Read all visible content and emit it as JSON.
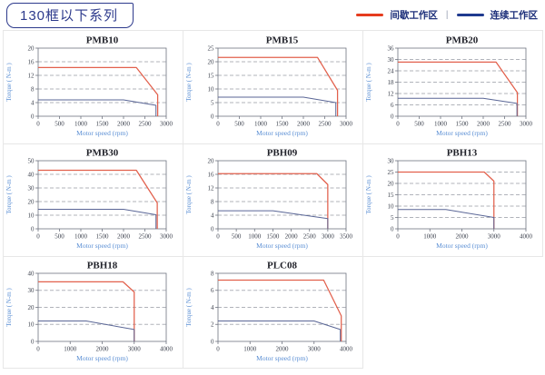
{
  "header": {
    "title": "130框以下系列",
    "legend": [
      {
        "label": "间歇工作区",
        "color": "#e63c1e"
      },
      {
        "label": "连续工作区",
        "color": "#1f3a8f"
      }
    ],
    "legend_separator": "|"
  },
  "colors": {
    "intermittent": "#e2604c",
    "continuous": "#5a6696",
    "grid_line": "#b0b3ba",
    "plot_border": "#6f7480",
    "tick_text": "#3f4450",
    "title_text": "#1f2028",
    "axis_label_text": "#5b8fd4"
  },
  "chart_data": [
    {
      "type": "line",
      "title": "PMB10",
      "xlabel": "Motor speed (rpm)",
      "ylabel": "Torque ( N-m )",
      "xlim": [
        0,
        3000
      ],
      "ylim": [
        0,
        20
      ],
      "xticks": [
        0,
        500,
        1000,
        1500,
        2000,
        2500,
        3000
      ],
      "yticks": [
        0,
        4,
        8,
        12,
        16,
        20
      ],
      "grid": "dashed-horizontal",
      "legend_position": "none",
      "series": [
        {
          "name": "间歇工作区",
          "role": "intermittent",
          "points": [
            [
              0,
              14.3
            ],
            [
              2300,
              14.3
            ],
            [
              2800,
              6.3
            ],
            [
              2800,
              0
            ]
          ]
        },
        {
          "name": "连续工作区",
          "role": "continuous",
          "points": [
            [
              0,
              4.8
            ],
            [
              2000,
              4.8
            ],
            [
              2760,
              3.2
            ],
            [
              2760,
              0
            ]
          ]
        }
      ]
    },
    {
      "type": "line",
      "title": "PMB15",
      "xlabel": "Motor speed (rpm)",
      "ylabel": "Torque ( N-m )",
      "xlim": [
        0,
        3000
      ],
      "ylim": [
        0,
        25
      ],
      "xticks": [
        0,
        500,
        1000,
        1500,
        2000,
        2500,
        3000
      ],
      "yticks": [
        0,
        5,
        10,
        15,
        20,
        25
      ],
      "grid": "dashed-horizontal",
      "legend_position": "none",
      "series": [
        {
          "name": "间歇工作区",
          "role": "intermittent",
          "points": [
            [
              0,
              21.6
            ],
            [
              2330,
              21.6
            ],
            [
              2800,
              9.5
            ],
            [
              2800,
              0
            ]
          ]
        },
        {
          "name": "连续工作区",
          "role": "continuous",
          "points": [
            [
              0,
              7
            ],
            [
              2000,
              7
            ],
            [
              2760,
              5
            ],
            [
              2760,
              0
            ]
          ]
        }
      ]
    },
    {
      "type": "line",
      "title": "PMB20",
      "xlabel": "Motor speed (rpm)",
      "ylabel": "Torque ( N-m )",
      "xlim": [
        0,
        3000
      ],
      "ylim": [
        0,
        36
      ],
      "xticks": [
        0,
        500,
        1000,
        1500,
        2000,
        2500,
        3000
      ],
      "yticks": [
        0,
        6,
        12,
        18,
        24,
        30,
        36
      ],
      "grid": "dashed-horizontal",
      "legend_position": "none",
      "series": [
        {
          "name": "间歇工作区",
          "role": "intermittent",
          "points": [
            [
              0,
              28.6
            ],
            [
              2300,
              28.6
            ],
            [
              2800,
              12.5
            ],
            [
              2800,
              0
            ]
          ]
        },
        {
          "name": "连续工作区",
          "role": "continuous",
          "points": [
            [
              0,
              9.5
            ],
            [
              2000,
              9.5
            ],
            [
              2790,
              6.8
            ],
            [
              2790,
              0
            ]
          ]
        }
      ]
    },
    {
      "type": "line",
      "title": "PMB30",
      "xlabel": "Motor speed (rpm)",
      "ylabel": "Torque ( N-m )",
      "xlim": [
        0,
        3000
      ],
      "ylim": [
        0,
        50
      ],
      "xticks": [
        0,
        500,
        1000,
        1500,
        2000,
        2500,
        3000
      ],
      "yticks": [
        0,
        10,
        20,
        30,
        40,
        50
      ],
      "grid": "dashed-horizontal",
      "legend_position": "none",
      "series": [
        {
          "name": "间歇工作区",
          "role": "intermittent",
          "points": [
            [
              0,
              43
            ],
            [
              2300,
              43
            ],
            [
              2790,
              19
            ],
            [
              2790,
              0
            ]
          ]
        },
        {
          "name": "连续工作区",
          "role": "continuous",
          "points": [
            [
              0,
              14.3
            ],
            [
              2000,
              14.3
            ],
            [
              2760,
              10.3
            ],
            [
              2760,
              0
            ]
          ]
        }
      ]
    },
    {
      "type": "line",
      "title": "PBH09",
      "xlabel": "Motor speed (rpm)",
      "ylabel": "Torque ( N-m )",
      "xlim": [
        0,
        3500
      ],
      "ylim": [
        0,
        20
      ],
      "xticks": [
        0,
        500,
        1000,
        1500,
        2000,
        2500,
        3000,
        3500
      ],
      "yticks": [
        0,
        4,
        8,
        12,
        16,
        20
      ],
      "grid": "dashed-horizontal",
      "legend_position": "none",
      "series": [
        {
          "name": "间歇工作区",
          "role": "intermittent",
          "points": [
            [
              0,
              16.2
            ],
            [
              2700,
              16.2
            ],
            [
              3000,
              13
            ],
            [
              3000,
              0
            ]
          ]
        },
        {
          "name": "连续工作区",
          "role": "continuous",
          "points": [
            [
              0,
              5.3
            ],
            [
              1500,
              5.3
            ],
            [
              3000,
              3
            ],
            [
              3000,
              0
            ]
          ]
        }
      ]
    },
    {
      "type": "line",
      "title": "PBH13",
      "xlabel": "Motor speed (rpm)",
      "ylabel": "Torque ( N-m )",
      "xlim": [
        0,
        4000
      ],
      "ylim": [
        0,
        30
      ],
      "xticks": [
        0,
        1000,
        2000,
        3000,
        4000
      ],
      "yticks": [
        0,
        5,
        10,
        15,
        20,
        25,
        30
      ],
      "grid": "dashed-horizontal",
      "legend_position": "none",
      "series": [
        {
          "name": "间歇工作区",
          "role": "intermittent",
          "points": [
            [
              0,
              25
            ],
            [
              2700,
              25
            ],
            [
              3000,
              21
            ],
            [
              3000,
              0
            ]
          ]
        },
        {
          "name": "连续工作区",
          "role": "continuous",
          "points": [
            [
              0,
              8.5
            ],
            [
              1500,
              8.5
            ],
            [
              3000,
              5
            ],
            [
              3000,
              0
            ]
          ]
        }
      ]
    },
    {
      "type": "line",
      "title": "PBH18",
      "xlabel": "Motor speed (rpm)",
      "ylabel": "Torque ( N-m )",
      "xlim": [
        0,
        4000
      ],
      "ylim": [
        0,
        40
      ],
      "xticks": [
        0,
        1000,
        2000,
        3000,
        4000
      ],
      "yticks": [
        0,
        10,
        20,
        30,
        40
      ],
      "grid": "dashed-horizontal",
      "legend_position": "none",
      "series": [
        {
          "name": "间歇工作区",
          "role": "intermittent",
          "points": [
            [
              0,
              35
            ],
            [
              2650,
              35
            ],
            [
              3000,
              29
            ],
            [
              3000,
              0
            ]
          ]
        },
        {
          "name": "连续工作区",
          "role": "continuous",
          "points": [
            [
              0,
              12
            ],
            [
              1500,
              12
            ],
            [
              3000,
              7
            ],
            [
              3000,
              0
            ]
          ]
        }
      ]
    },
    {
      "type": "line",
      "title": "PLC08",
      "xlabel": "Motor speed (rpm)",
      "ylabel": "Torque ( N-m )",
      "xlim": [
        0,
        4000
      ],
      "ylim": [
        0,
        8
      ],
      "xticks": [
        0,
        1000,
        2000,
        3000,
        4000
      ],
      "yticks": [
        0,
        2,
        4,
        6,
        8
      ],
      "grid": "dashed-horizontal",
      "legend_position": "none",
      "series": [
        {
          "name": "间歇工作区",
          "role": "intermittent",
          "points": [
            [
              0,
              7.2
            ],
            [
              3300,
              7.2
            ],
            [
              3850,
              3
            ],
            [
              3850,
              0
            ]
          ]
        },
        {
          "name": "连续工作区",
          "role": "continuous",
          "points": [
            [
              0,
              2.4
            ],
            [
              3000,
              2.4
            ],
            [
              3820,
              1.4
            ],
            [
              3820,
              0
            ]
          ]
        }
      ]
    }
  ]
}
